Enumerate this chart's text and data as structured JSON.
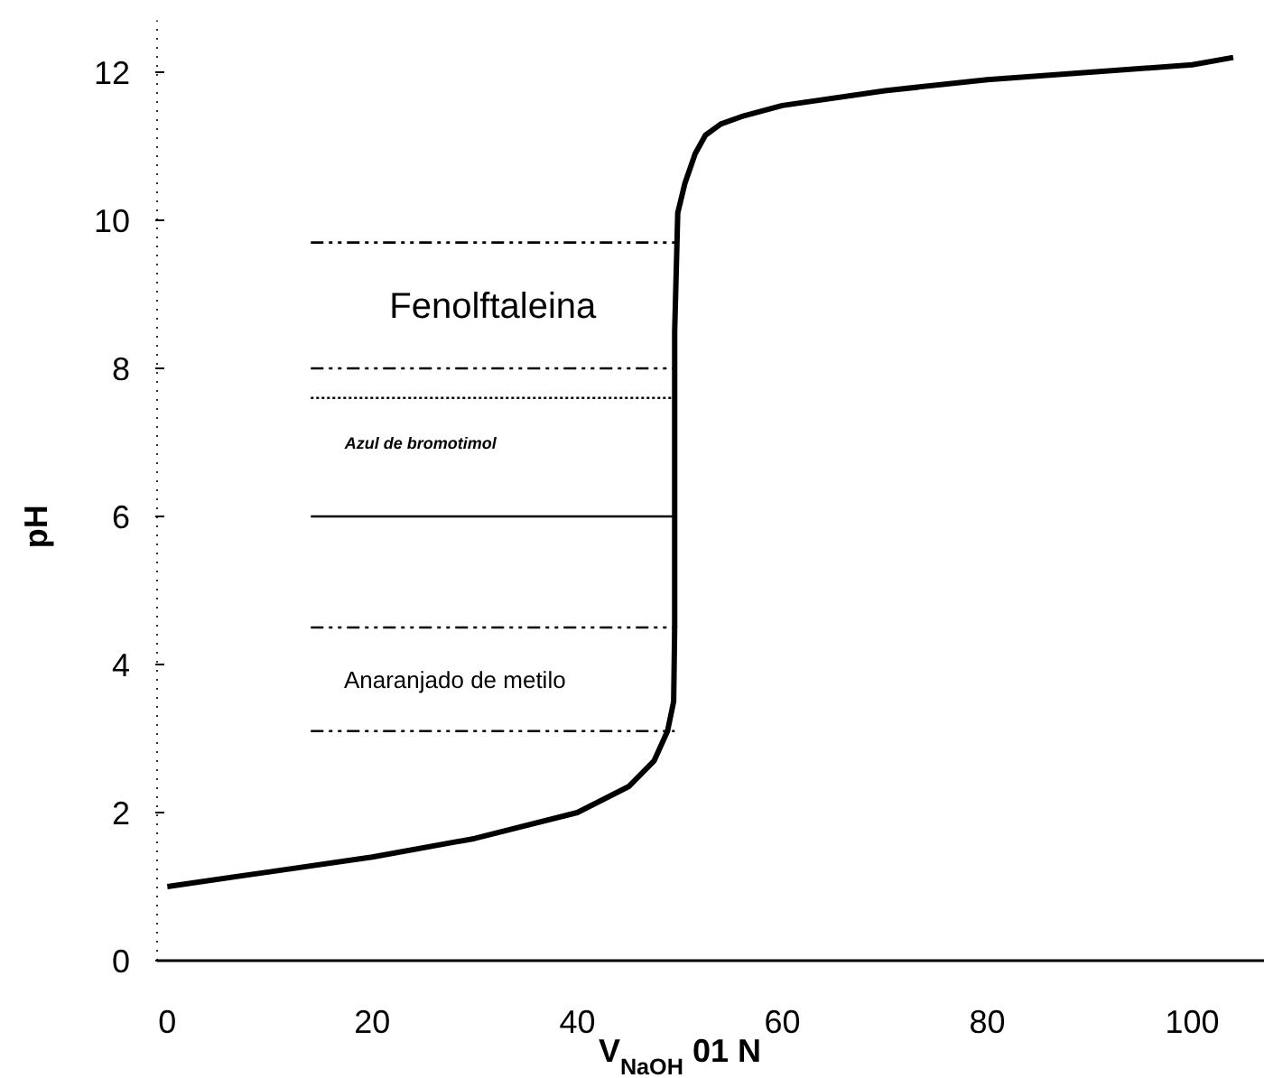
{
  "chart_data": {
    "type": "line",
    "xlabel": "V$_{NaOH}$ 01 N",
    "ylabel": "pH",
    "xlim": [
      -1,
      107
    ],
    "ylim": [
      0,
      12.7
    ],
    "xticks": [
      0,
      20,
      40,
      60,
      80,
      100
    ],
    "yticks": [
      0,
      2,
      4,
      6,
      8,
      10,
      12
    ],
    "grid": false,
    "marker": "none",
    "series": [
      {
        "color": "#000000",
        "line_style": "solid",
        "x": [
          0,
          10,
          20,
          30,
          40,
          45,
          47.5,
          48.8,
          49.4,
          49.5,
          49.5,
          49.8,
          50.5,
          51.5,
          52.5,
          54,
          56,
          60,
          70,
          80,
          90,
          100,
          104
        ],
        "values": [
          1.0,
          1.2,
          1.4,
          1.65,
          2.0,
          2.35,
          2.7,
          3.1,
          3.5,
          4.5,
          8.5,
          10.1,
          10.5,
          10.9,
          11.15,
          11.3,
          11.4,
          11.55,
          11.75,
          11.9,
          12.0,
          12.1,
          12.2
        ]
      },
      {
        "color": "#000000",
        "line_style": "dashed",
        "x": [
          14,
          49.5
        ],
        "values": [
          9.7,
          9.7
        ]
      },
      {
        "color": "#000000",
        "line_style": "dashed",
        "x": [
          14,
          49.5
        ],
        "values": [
          8.0,
          8.0
        ]
      },
      {
        "color": "#000000",
        "line_style": "dotted",
        "x": [
          14,
          49.5
        ],
        "values": [
          7.6,
          7.6
        ]
      },
      {
        "color": "#000000",
        "line_style": "solid",
        "x": [
          14,
          49.5
        ],
        "values": [
          6.0,
          6.0
        ]
      },
      {
        "color": "#000000",
        "line_style": "dashed",
        "x": [
          14,
          49.5
        ],
        "values": [
          4.5,
          4.5
        ]
      },
      {
        "color": "#000000",
        "line_style": "dashed",
        "x": [
          14,
          49.5
        ],
        "values": [
          3.1,
          3.1
        ]
      }
    ],
    "annotations": [
      "Fenolftaleina",
      "Azul de bromotimol",
      "Anaranjado de metilo"
    ]
  }
}
